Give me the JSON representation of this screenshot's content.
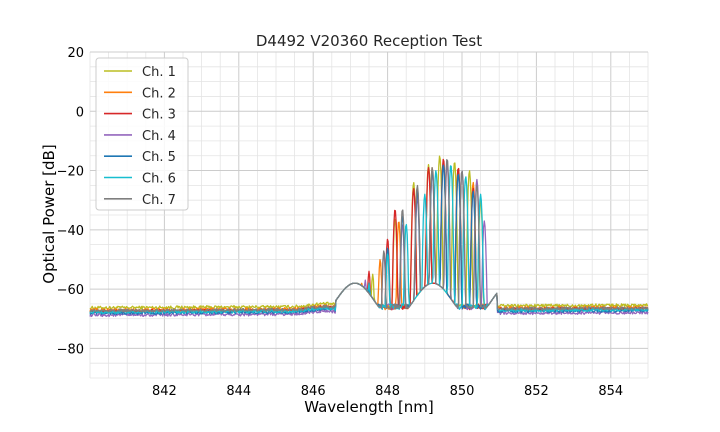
{
  "chart_data": {
    "type": "line",
    "title": "D4492 V20360 Reception Test",
    "xlabel": "Wavelength [nm]",
    "ylabel": "Optical Power [dB]",
    "xlim": [
      840,
      855
    ],
    "ylim": [
      -90,
      20
    ],
    "xticks": [
      842,
      844,
      846,
      848,
      850,
      852,
      854
    ],
    "xtick_labels": [
      "842",
      "844",
      "846",
      "848",
      "850",
      "852",
      "854"
    ],
    "yticks": [
      -80,
      -60,
      -40,
      -20,
      0,
      20
    ],
    "ytick_labels": [
      "−80",
      "−60",
      "−40",
      "−20",
      "0",
      "20"
    ],
    "grid": true,
    "minor_grid": true,
    "legend_position": "top-left",
    "series": [
      {
        "name": "Ch. 1",
        "color": "#bcbd22",
        "baseline": -66.0,
        "peaks": [
          [
            847.2,
            -58
          ],
          [
            847.6,
            -55
          ],
          [
            848.2,
            -36
          ],
          [
            848.7,
            -24
          ],
          [
            849.1,
            -18
          ],
          [
            849.4,
            -15
          ],
          [
            849.8,
            -17
          ],
          [
            850.2,
            -20
          ],
          [
            850.5,
            -30
          ]
        ]
      },
      {
        "name": "Ch. 2",
        "color": "#ff7f0e",
        "baseline": -66.8,
        "peaks": [
          [
            847.3,
            -58
          ],
          [
            847.8,
            -50
          ],
          [
            848.3,
            -37
          ],
          [
            848.8,
            -26
          ],
          [
            849.2,
            -19
          ],
          [
            849.5,
            -17
          ],
          [
            849.9,
            -19
          ],
          [
            850.3,
            -24
          ]
        ]
      },
      {
        "name": "Ch. 3",
        "color": "#d62728",
        "baseline": -67.2,
        "peaks": [
          [
            847.0,
            -62
          ],
          [
            847.5,
            -54
          ],
          [
            848.0,
            -43
          ],
          [
            848.2,
            -33
          ],
          [
            848.7,
            -26
          ],
          [
            849.1,
            -19
          ],
          [
            849.5,
            -16
          ],
          [
            849.9,
            -19
          ],
          [
            850.3,
            -26
          ]
        ]
      },
      {
        "name": "Ch. 4",
        "color": "#9467bd",
        "baseline": -68.5,
        "peaks": [
          [
            847.4,
            -57
          ],
          [
            847.9,
            -48
          ],
          [
            848.4,
            -38
          ],
          [
            848.8,
            -29
          ],
          [
            849.2,
            -21
          ],
          [
            849.6,
            -18
          ],
          [
            850.0,
            -20
          ],
          [
            850.4,
            -23
          ],
          [
            850.6,
            -37
          ]
        ]
      },
      {
        "name": "Ch. 5",
        "color": "#1f77b4",
        "baseline": -67.8,
        "peaks": [
          [
            847.5,
            -60
          ],
          [
            848.0,
            -46
          ],
          [
            848.4,
            -35
          ],
          [
            848.8,
            -27
          ],
          [
            849.2,
            -20
          ],
          [
            849.5,
            -18
          ],
          [
            849.9,
            -21
          ],
          [
            850.3,
            -27
          ]
        ]
      },
      {
        "name": "Ch. 6",
        "color": "#17becf",
        "baseline": -67.5,
        "peaks": [
          [
            847.5,
            -58
          ],
          [
            848.0,
            -48
          ],
          [
            848.5,
            -38
          ],
          [
            849.0,
            -28
          ],
          [
            849.3,
            -20
          ],
          [
            849.7,
            -18
          ],
          [
            850.1,
            -22
          ],
          [
            850.5,
            -28
          ]
        ]
      },
      {
        "name": "Ch. 7",
        "color": "#7f7f7f",
        "baseline": -67.0,
        "peaks": [
          [
            847.3,
            -59
          ],
          [
            847.9,
            -47
          ],
          [
            848.4,
            -33
          ],
          [
            848.8,
            -25
          ],
          [
            849.2,
            -19
          ],
          [
            849.6,
            -16
          ],
          [
            850.0,
            -20
          ],
          [
            850.4,
            -25
          ]
        ]
      }
    ]
  }
}
